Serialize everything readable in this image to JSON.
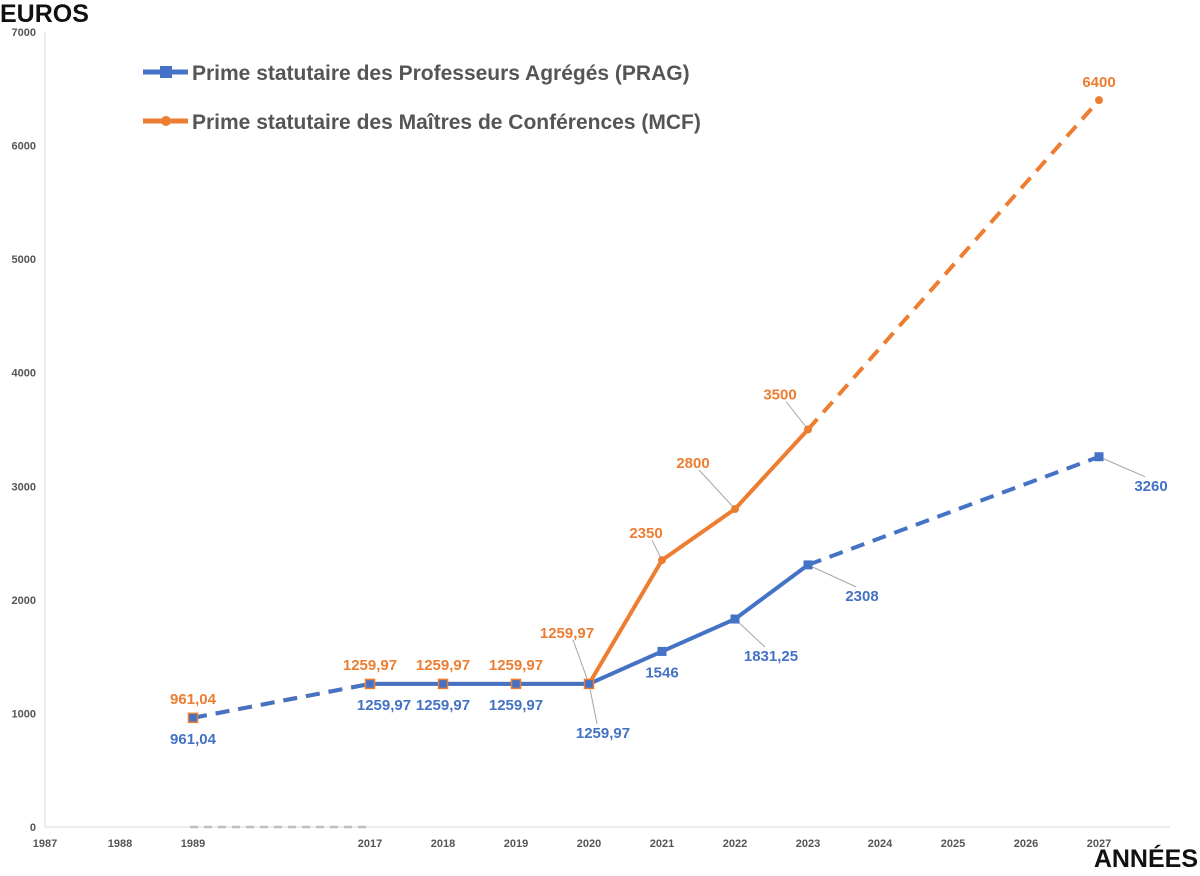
{
  "chart_data": {
    "type": "line",
    "ylabel": "EUROS",
    "xlabel": "ANNÉES",
    "ylim": [
      0,
      7000
    ],
    "y_ticks": [
      "0",
      "1000",
      "2000",
      "3000",
      "4000",
      "5000",
      "6000",
      "7000"
    ],
    "x_ticks": [
      "1987",
      "1988",
      "1989",
      "2017",
      "2018",
      "2019",
      "2020",
      "2021",
      "2022",
      "2023",
      "2024",
      "2025",
      "2026",
      "2027"
    ],
    "grid": false,
    "legend_position": "top-left",
    "series": [
      {
        "name": "Prime statutaire des Professeurs Agrégés (PRAG)",
        "color": "#4472c4",
        "marker": "square",
        "points": [
          {
            "x": "1989",
            "y": 961.04,
            "label": "961,04",
            "style": "dashed"
          },
          {
            "x": "2017",
            "y": 1259.97,
            "label": "1259,97",
            "style": "solid"
          },
          {
            "x": "2018",
            "y": 1259.97,
            "label": "1259,97",
            "style": "solid"
          },
          {
            "x": "2019",
            "y": 1259.97,
            "label": "1259,97",
            "style": "solid"
          },
          {
            "x": "2020",
            "y": 1259.97,
            "label": "1259,97",
            "style": "solid"
          },
          {
            "x": "2021",
            "y": 1546,
            "label": "1546",
            "style": "solid"
          },
          {
            "x": "2022",
            "y": 1831.25,
            "label": "1831,25",
            "style": "solid"
          },
          {
            "x": "2023",
            "y": 2308,
            "label": "2308",
            "style": "dashed"
          },
          {
            "x": "2027",
            "y": 3260,
            "label": "3260",
            "style": "dashed"
          }
        ]
      },
      {
        "name": "Prime statutaire des Maîtres de Conférences (MCF)",
        "color": "#ed7d31",
        "marker": "circle",
        "points": [
          {
            "x": "1989",
            "y": 961.04,
            "label": "961,04",
            "style": "dashed"
          },
          {
            "x": "2017",
            "y": 1259.97,
            "label": "1259,97",
            "style": "solid"
          },
          {
            "x": "2018",
            "y": 1259.97,
            "label": "1259,97",
            "style": "solid"
          },
          {
            "x": "2019",
            "y": 1259.97,
            "label": "1259,97",
            "style": "solid"
          },
          {
            "x": "2020",
            "y": 1259.97,
            "label": "1259,97",
            "style": "solid"
          },
          {
            "x": "2021",
            "y": 2350,
            "label": "2350",
            "style": "solid"
          },
          {
            "x": "2022",
            "y": 2800,
            "label": "2800",
            "style": "solid"
          },
          {
            "x": "2023",
            "y": 3500,
            "label": "3500",
            "style": "dashed"
          },
          {
            "x": "2027",
            "y": 6400,
            "label": "6400",
            "style": "dashed"
          }
        ]
      }
    ]
  }
}
